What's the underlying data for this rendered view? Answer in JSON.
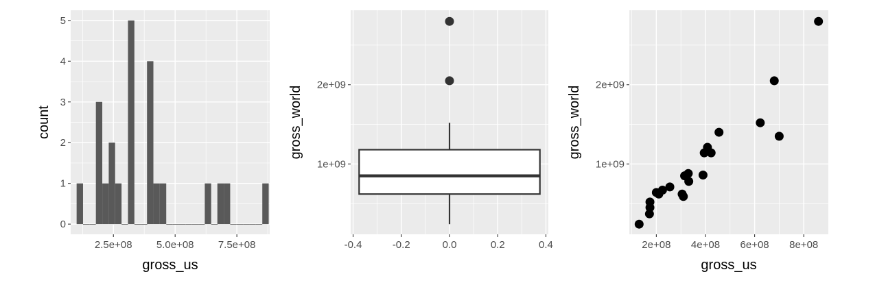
{
  "chart_data": [
    {
      "type": "histogram",
      "xlabel": "gross_us",
      "ylabel": "count",
      "xlim": [
        77000000,
        883000000
      ],
      "ylim": [
        -0.25,
        5.25
      ],
      "x_ticks": [
        {
          "value": 250000000,
          "label": "2.5e+08"
        },
        {
          "value": 500000000,
          "label": "5.0e+08"
        },
        {
          "value": 750000000,
          "label": "7.5e+08"
        }
      ],
      "y_ticks": [
        {
          "value": 0,
          "label": "0"
        },
        {
          "value": 1,
          "label": "1"
        },
        {
          "value": 2,
          "label": "2"
        },
        {
          "value": 3,
          "label": "3"
        },
        {
          "value": 4,
          "label": "4"
        },
        {
          "value": 5,
          "label": "5"
        }
      ],
      "bin_width": 25900000,
      "bin_centers": [
        114000000,
        140000000,
        166000000,
        192000000,
        218000000,
        244000000,
        270000000,
        296000000,
        322000000,
        348000000,
        374000000,
        399000000,
        425000000,
        451000000,
        477000000,
        503000000,
        529000000,
        555000000,
        581000000,
        607000000,
        633000000,
        659000000,
        684000000,
        710000000,
        736000000,
        762000000,
        788000000,
        814000000,
        840000000,
        866000000
      ],
      "counts": [
        1,
        0,
        0,
        3,
        1,
        2,
        1,
        0,
        5,
        0,
        0,
        4,
        1,
        1,
        0,
        0,
        0,
        0,
        0,
        0,
        1,
        0,
        1,
        1,
        0,
        0,
        0,
        0,
        0,
        1
      ]
    },
    {
      "type": "boxplot",
      "xlabel": "",
      "ylabel": "gross_world",
      "xlim": [
        -0.41,
        0.41
      ],
      "ylim": [
        112000000,
        2940000000
      ],
      "x_ticks": [
        {
          "value": -0.4,
          "label": "-0.4"
        },
        {
          "value": -0.2,
          "label": "-0.2"
        },
        {
          "value": 0.0,
          "label": "0.0"
        },
        {
          "value": 0.2,
          "label": "0.2"
        },
        {
          "value": 0.4,
          "label": "0.4"
        }
      ],
      "y_ticks": [
        {
          "value": 1000000000,
          "label": "1e+09"
        },
        {
          "value": 2000000000,
          "label": "2e+09"
        }
      ],
      "box": {
        "x_center": 0,
        "width": 0.75,
        "whisker_low": 240000000,
        "q1": 620000000,
        "median": 850000000,
        "q3": 1180000000,
        "whisker_high": 1520000000,
        "outliers": [
          2050000000,
          2800000000
        ]
      }
    },
    {
      "type": "scatter",
      "xlabel": "gross_us",
      "ylabel": "gross_world",
      "xlim": [
        90000000,
        900000000
      ],
      "ylim": [
        112000000,
        2940000000
      ],
      "x_ticks": [
        {
          "value": 200000000,
          "label": "2e+08"
        },
        {
          "value": 400000000,
          "label": "4e+08"
        },
        {
          "value": 600000000,
          "label": "6e+08"
        },
        {
          "value": 800000000,
          "label": "8e+08"
        }
      ],
      "y_ticks": [
        {
          "value": 1000000000,
          "label": "1e+09"
        },
        {
          "value": 2000000000,
          "label": "2e+09"
        }
      ],
      "points": [
        {
          "x": 130000000,
          "y": 240000000
        },
        {
          "x": 172000000,
          "y": 370000000
        },
        {
          "x": 174000000,
          "y": 450000000
        },
        {
          "x": 174000000,
          "y": 520000000
        },
        {
          "x": 200000000,
          "y": 640000000
        },
        {
          "x": 210000000,
          "y": 620000000
        },
        {
          "x": 225000000,
          "y": 670000000
        },
        {
          "x": 255000000,
          "y": 710000000
        },
        {
          "x": 305000000,
          "y": 620000000
        },
        {
          "x": 310000000,
          "y": 590000000
        },
        {
          "x": 315000000,
          "y": 850000000
        },
        {
          "x": 330000000,
          "y": 880000000
        },
        {
          "x": 332000000,
          "y": 780000000
        },
        {
          "x": 390000000,
          "y": 860000000
        },
        {
          "x": 395000000,
          "y": 1140000000
        },
        {
          "x": 408000000,
          "y": 1210000000
        },
        {
          "x": 423000000,
          "y": 1140000000
        },
        {
          "x": 455000000,
          "y": 1400000000
        },
        {
          "x": 623000000,
          "y": 1520000000
        },
        {
          "x": 680000000,
          "y": 2050000000
        },
        {
          "x": 700000000,
          "y": 1350000000
        },
        {
          "x": 860000000,
          "y": 2800000000
        }
      ]
    }
  ]
}
